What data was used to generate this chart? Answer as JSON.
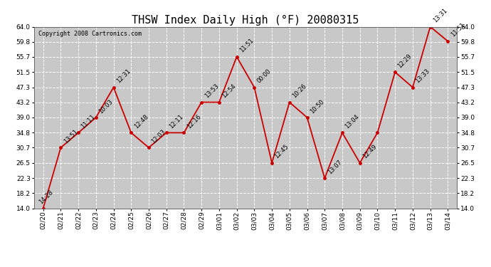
{
  "title": "THSW Index Daily High (°F) 20080315",
  "copyright": "Copyright 2008 Cartronics.com",
  "dates": [
    "02/20",
    "02/21",
    "02/22",
    "02/23",
    "02/24",
    "02/25",
    "02/26",
    "02/27",
    "02/28",
    "02/29",
    "03/01",
    "03/02",
    "03/03",
    "03/04",
    "03/05",
    "03/06",
    "03/07",
    "03/08",
    "03/09",
    "03/10",
    "03/11",
    "03/12",
    "03/13",
    "03/14"
  ],
  "values": [
    14.0,
    30.7,
    34.8,
    39.0,
    47.3,
    34.8,
    30.7,
    34.8,
    34.8,
    43.2,
    43.2,
    55.7,
    47.3,
    26.5,
    43.2,
    39.0,
    22.3,
    34.8,
    26.5,
    34.8,
    51.5,
    47.3,
    64.0,
    60.0
  ],
  "times": [
    "14:28",
    "13:51",
    "11:11",
    "10:03",
    "12:31",
    "12:48",
    "12:03",
    "12:11",
    "12:16",
    "13:53",
    "12:54",
    "11:51",
    "00:00",
    "12:45",
    "10:26",
    "10:50",
    "13:07",
    "13:04",
    "12:49",
    "",
    "12:29",
    "13:33",
    "13:31",
    "11:51"
  ],
  "ylim": [
    14.0,
    64.0
  ],
  "yticks": [
    14.0,
    18.2,
    22.3,
    26.5,
    30.7,
    34.8,
    39.0,
    43.2,
    47.3,
    51.5,
    55.7,
    59.8,
    64.0
  ],
  "line_color": "#cc0000",
  "marker_color": "#cc0000",
  "bg_color": "#ffffff",
  "plot_bg_color": "#c8c8c8",
  "grid_color": "#ffffff",
  "title_fontsize": 11,
  "tick_fontsize": 6.5,
  "annotation_fontsize": 6.0,
  "copyright_fontsize": 6.0
}
